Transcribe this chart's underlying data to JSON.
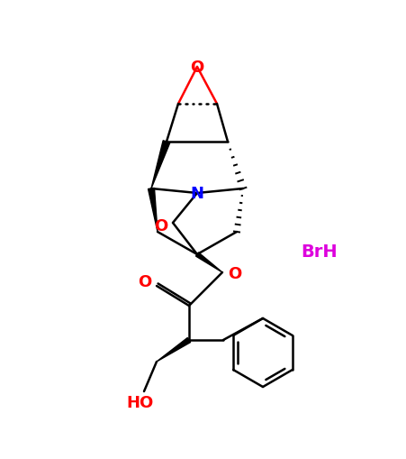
{
  "background_color": "#ffffff",
  "atom_colors": {
    "O": "#ff0000",
    "N": "#0000ff",
    "BrH": "#dd00dd",
    "C": "#000000"
  },
  "figsize": [
    4.51,
    5.1
  ],
  "dpi": 100,
  "lw": 1.8
}
